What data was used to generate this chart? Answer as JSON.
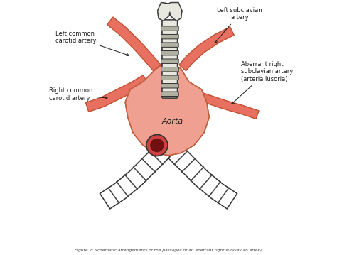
{
  "bg_color": "#ffffff",
  "aorta_color": "#f0a090",
  "aorta_edge": "#c06040",
  "artery_fill": "#e87060",
  "artery_edge": "#c05030",
  "trachea_fill": "#e8e8e0",
  "trachea_edge": "#404040",
  "trachea_ring_fill": "#b0b0a0",
  "trachea_ring_edge": "#303030",
  "bronchi_fill": "#ffffff",
  "bronchi_stripe": "#404040",
  "bronchi_edge": "#303030",
  "dark_vessel_fill": "#cc3030",
  "dark_vessel_inner": "#881010",
  "outline_color": "#303030",
  "text_color": "#1a1a1a",
  "caption_color": "#404040",
  "labels": {
    "left_common_carotid": "Left common\ncarotid artery",
    "left_subclavian": "Left subclavian\nartery",
    "right_common_carotid": "Right common\ncarotid artery",
    "aberrant_right": "Aberrant right\nsubclavian artery\n(arteria lusoria)",
    "aorta": "Aorta"
  },
  "caption": "Figure 2: Schematic arrangements of the passages of an aberrant right subclavian artery",
  "fig_width": 4.74,
  "fig_height": 3.59,
  "dpi": 100
}
